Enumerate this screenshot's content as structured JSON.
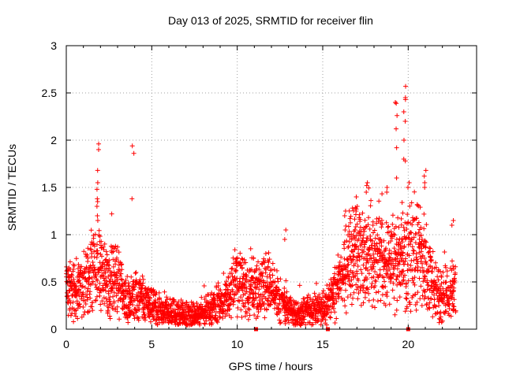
{
  "chart_data": {
    "type": "scatter",
    "title": "Day 013 of 2025, SRMTID for receiver flin",
    "xlabel": "GPS time / hours",
    "ylabel": "SRMTID / TECUs",
    "xlim": [
      0,
      24
    ],
    "ylim": [
      0,
      3
    ],
    "xticks": [
      0,
      5,
      10,
      15,
      20
    ],
    "xtick_labels": [
      "0",
      "5",
      "10",
      "15",
      "20"
    ],
    "yticks": [
      0,
      0.5,
      1,
      1.5,
      2,
      2.5,
      3
    ],
    "ytick_labels": [
      "0",
      "0.5",
      "1",
      "1.5",
      "2",
      "2.5",
      "3"
    ],
    "grid": true,
    "marker": "+",
    "color": "#ff0000",
    "marker_note": "dense point cloud: envelope profile (hour, typical SRMTID) used to regenerate cloud",
    "profile": [
      [
        0.0,
        0.4
      ],
      [
        0.5,
        0.42
      ],
      [
        1.0,
        0.4
      ],
      [
        1.5,
        0.6
      ],
      [
        2.0,
        0.6
      ],
      [
        2.5,
        0.5
      ],
      [
        3.0,
        0.5
      ],
      [
        3.5,
        0.3
      ],
      [
        4.0,
        0.35
      ],
      [
        4.5,
        0.3
      ],
      [
        5.0,
        0.25
      ],
      [
        5.5,
        0.22
      ],
      [
        6.0,
        0.18
      ],
      [
        6.5,
        0.15
      ],
      [
        7.0,
        0.14
      ],
      [
        7.5,
        0.14
      ],
      [
        8.0,
        0.2
      ],
      [
        8.5,
        0.22
      ],
      [
        9.0,
        0.28
      ],
      [
        9.5,
        0.32
      ],
      [
        10.0,
        0.55
      ],
      [
        10.5,
        0.4
      ],
      [
        11.0,
        0.45
      ],
      [
        11.5,
        0.5
      ],
      [
        12.0,
        0.4
      ],
      [
        12.5,
        0.3
      ],
      [
        13.0,
        0.2
      ],
      [
        13.5,
        0.18
      ],
      [
        14.0,
        0.2
      ],
      [
        14.5,
        0.2
      ],
      [
        15.0,
        0.22
      ],
      [
        15.5,
        0.3
      ],
      [
        16.0,
        0.5
      ],
      [
        16.5,
        0.7
      ],
      [
        17.0,
        0.8
      ],
      [
        17.5,
        0.8
      ],
      [
        18.0,
        0.75
      ],
      [
        18.5,
        0.7
      ],
      [
        19.0,
        0.7
      ],
      [
        19.5,
        0.7
      ],
      [
        20.0,
        0.75
      ],
      [
        20.5,
        0.9
      ],
      [
        21.0,
        0.7
      ],
      [
        21.5,
        0.45
      ],
      [
        22.0,
        0.35
      ],
      [
        22.5,
        0.4
      ],
      [
        22.8,
        0.5
      ]
    ],
    "spikes": [
      {
        "x": 1.85,
        "ys": [
          1.96,
          1.9,
          1.68,
          1.55,
          1.48,
          1.38,
          1.35,
          1.3,
          1.2,
          1.15
        ]
      },
      {
        "x": 2.6,
        "ys": [
          1.22
        ]
      },
      {
        "x": 3.9,
        "ys": [
          1.94,
          1.86,
          1.38
        ]
      },
      {
        "x": 12.8,
        "ys": [
          1.05,
          0.95
        ]
      },
      {
        "x": 16.3,
        "ys": [
          1.25,
          1.2,
          1.05
        ]
      },
      {
        "x": 17.0,
        "ys": [
          1.4,
          1.3,
          1.25
        ]
      },
      {
        "x": 17.6,
        "ys": [
          1.55,
          1.52,
          1.45
        ]
      },
      {
        "x": 18.8,
        "ys": [
          1.5,
          1.45
        ]
      },
      {
        "x": 19.3,
        "ys": [
          2.4,
          2.39,
          2.26,
          2.12,
          1.92,
          1.6
        ]
      },
      {
        "x": 19.8,
        "ys": [
          2.57,
          2.45,
          2.43,
          2.3,
          2.2,
          2.0,
          1.8,
          1.78
        ]
      },
      {
        "x": 20.0,
        "ys": [
          1.55,
          1.5
        ]
      },
      {
        "x": 21.0,
        "ys": [
          1.68,
          1.62,
          1.55,
          1.5
        ]
      },
      {
        "x": 22.6,
        "ys": [
          1.15,
          1.1
        ]
      }
    ],
    "gap_markers": [
      11.1,
      15.3,
      20.0
    ]
  }
}
